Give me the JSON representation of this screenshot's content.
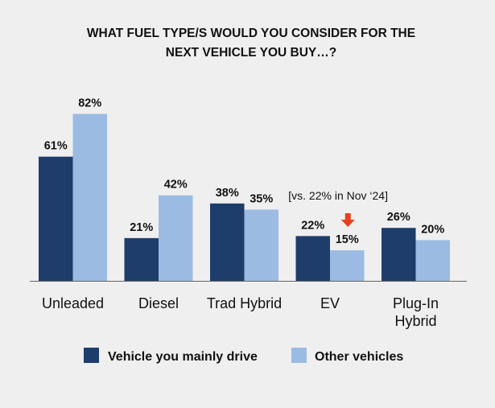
{
  "chart_data": {
    "type": "bar",
    "title_lines": [
      "WHAT FUEL TYPE/S WOULD YOU CONSIDER FOR THE",
      "NEXT VEHICLE YOU BUY…?"
    ],
    "categories": [
      [
        "Unleaded"
      ],
      [
        "Diesel"
      ],
      [
        "Trad Hybrid"
      ],
      [
        "EV"
      ],
      [
        "Plug-In",
        "Hybrid"
      ]
    ],
    "series": [
      {
        "name": "Vehicle you mainly drive",
        "color": "#1f3d6b",
        "values": [
          61,
          21,
          38,
          22,
          26
        ],
        "labels": [
          "61%",
          "21%",
          "38%",
          "22%",
          "26%"
        ]
      },
      {
        "name": "Other vehicles",
        "color": "#9bbbe3",
        "values": [
          82,
          42,
          35,
          15,
          20
        ],
        "labels": [
          "82%",
          "42%",
          "35%",
          "15%",
          "20%"
        ]
      }
    ],
    "ylim": [
      0,
      100
    ],
    "grid": false,
    "legend_position": "bottom",
    "annotation": {
      "text": "[vs. 22% in Nov ‘24]",
      "category": "EV",
      "series": "Other vehicles",
      "marker": "down-arrow",
      "marker_color": "#e8401c"
    }
  }
}
